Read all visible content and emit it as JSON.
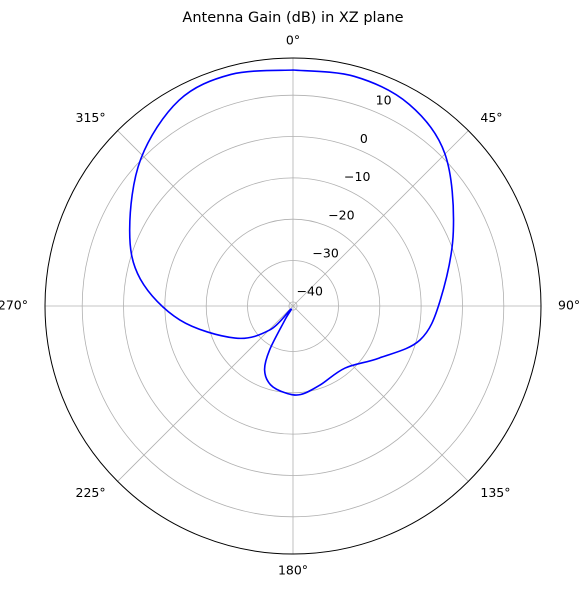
{
  "chart_data": {
    "type": "polar",
    "title": "Antenna Gain (dB) in XZ plane",
    "x": [
      0,
      15,
      30,
      45,
      65,
      88,
      105,
      121,
      140,
      161,
      175,
      185,
      196,
      204,
      208,
      210,
      215,
      224,
      241,
      263,
      280,
      295,
      314,
      331,
      345,
      360
    ],
    "series": [
      {
        "color": "#0000ff",
        "values": [
          16.1,
          16.5,
          15.3,
          11,
          1.8,
          -5.4,
          -9.2,
          -16.6,
          -21.4,
          -20.8,
          -19.5,
          -19.9,
          -21.2,
          -24.1,
          -28.9,
          -37,
          -40,
          -33,
          -25,
          -13.4,
          -3.5,
          2.6,
          10.2,
          15.9,
          17,
          16.1
        ]
      }
    ],
    "ylim": [
      -41,
      19
    ],
    "yticks": [
      {
        "value": -40,
        "label": "−40"
      },
      {
        "value": -30,
        "label": "−30"
      },
      {
        "value": -20,
        "label": "−20"
      },
      {
        "value": -10,
        "label": "−10"
      },
      0,
      10
    ],
    "xticks": [
      {
        "value": 0,
        "label": "0°"
      },
      {
        "value": 45,
        "label": "45°"
      },
      {
        "value": 90,
        "label": "90°"
      },
      {
        "value": 135,
        "label": "135°"
      },
      {
        "value": 180,
        "label": "180°"
      },
      {
        "value": 225,
        "label": "225°"
      },
      {
        "value": 270,
        "label": "270°"
      },
      {
        "value": 315,
        "label": "315°"
      }
    ],
    "grid": true
  }
}
